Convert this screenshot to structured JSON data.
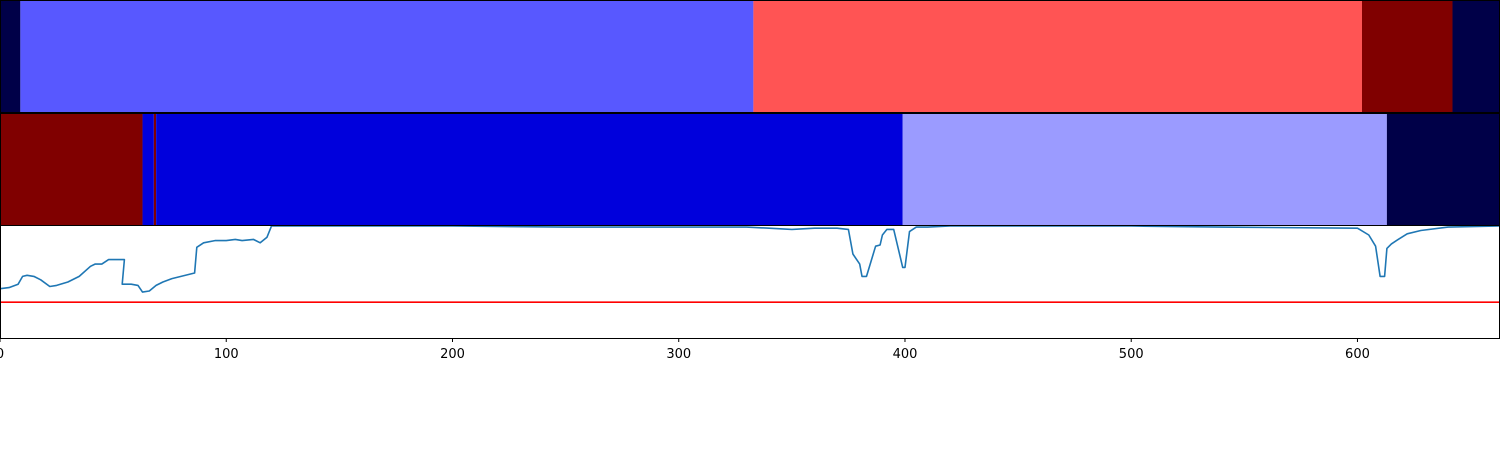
{
  "chart_data": [
    {
      "type": "heatmap",
      "title": "",
      "xlim": [
        0,
        663
      ],
      "cmap": "seismic",
      "segments": [
        {
          "start": 0,
          "end": 9,
          "color": "#000048"
        },
        {
          "start": 9,
          "end": 333,
          "color": "#5858ff"
        },
        {
          "start": 333,
          "end": 602,
          "color": "#ff5454"
        },
        {
          "start": 602,
          "end": 642,
          "color": "#800000"
        },
        {
          "start": 642,
          "end": 663,
          "color": "#000048"
        }
      ]
    },
    {
      "type": "heatmap",
      "title": "",
      "xlim": [
        0,
        663
      ],
      "cmap": "seismic",
      "segments": [
        {
          "start": 0,
          "end": 63,
          "color": "#800000"
        },
        {
          "start": 63,
          "end": 68,
          "color": "#0000dc"
        },
        {
          "start": 68,
          "end": 69,
          "color": "#800000"
        },
        {
          "start": 69,
          "end": 399,
          "color": "#0000dc"
        },
        {
          "start": 399,
          "end": 613,
          "color": "#9b9bff"
        },
        {
          "start": 613,
          "end": 663,
          "color": "#000048"
        }
      ]
    },
    {
      "type": "line",
      "title": "",
      "xlabel": "",
      "ylabel": "",
      "xlim": [
        0,
        663
      ],
      "ylim": [
        0,
        1
      ],
      "xticks": [
        "0",
        "100",
        "200",
        "300",
        "400",
        "500",
        "600"
      ],
      "grid": false,
      "series": [
        {
          "color": "#1f77b4",
          "x": [
            0,
            4,
            8,
            10,
            12,
            15,
            18,
            22,
            25,
            30,
            35,
            40,
            42,
            45,
            48,
            52,
            55,
            54,
            58,
            61,
            63,
            66,
            69,
            72,
            76,
            80,
            86,
            87,
            90,
            95,
            100,
            104,
            107,
            112,
            115,
            118,
            120,
            126,
            140,
            200,
            250,
            280,
            320,
            330,
            340,
            350,
            360,
            370,
            375,
            377,
            380,
            381,
            383,
            387,
            389,
            390,
            392,
            395,
            399,
            400,
            402,
            405,
            410,
            420,
            500,
            540,
            600,
            605,
            608,
            610,
            612,
            613,
            615,
            618,
            622,
            628,
            640,
            663
          ],
          "y": [
            0.44,
            0.45,
            0.48,
            0.55,
            0.56,
            0.55,
            0.52,
            0.46,
            0.47,
            0.5,
            0.55,
            0.64,
            0.66,
            0.66,
            0.7,
            0.7,
            0.7,
            0.48,
            0.48,
            0.47,
            0.41,
            0.42,
            0.47,
            0.5,
            0.53,
            0.55,
            0.58,
            0.81,
            0.85,
            0.87,
            0.87,
            0.88,
            0.87,
            0.88,
            0.85,
            0.9,
            1.0,
            1.0,
            1.0,
            1.0,
            0.99,
            0.99,
            0.99,
            0.99,
            0.98,
            0.97,
            0.98,
            0.98,
            0.97,
            0.75,
            0.66,
            0.55,
            0.55,
            0.82,
            0.83,
            0.92,
            0.97,
            0.97,
            0.63,
            0.63,
            0.95,
            0.99,
            0.99,
            1.0,
            1.0,
            0.99,
            0.98,
            0.92,
            0.82,
            0.55,
            0.55,
            0.8,
            0.84,
            0.88,
            0.93,
            0.96,
            0.99,
            1.0
          ]
        },
        {
          "color": "#ff0000",
          "x": [
            0,
            663
          ],
          "y": [
            0.32,
            0.32
          ]
        }
      ]
    }
  ]
}
